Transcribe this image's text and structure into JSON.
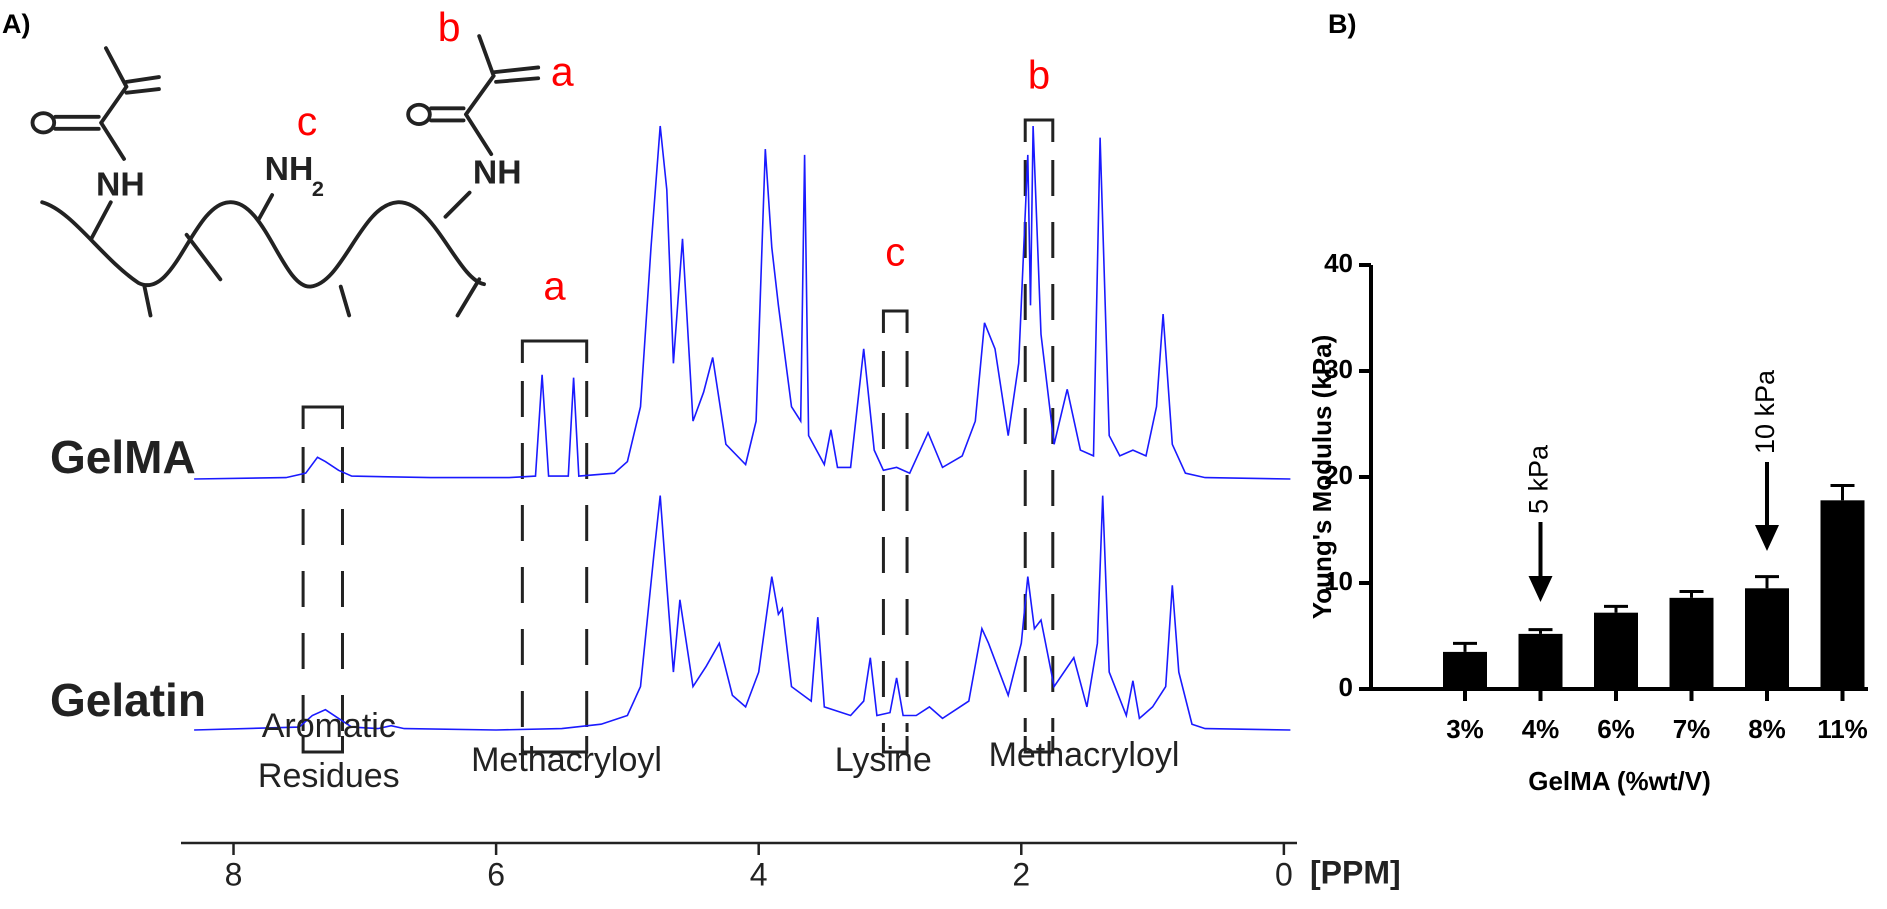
{
  "panel_labels": [
    "A)",
    "B)"
  ],
  "structure": {
    "labels": [
      "b",
      "a",
      "c",
      "NH",
      "NH",
      "NH",
      "2"
    ]
  },
  "chart_data": [
    {
      "type": "line",
      "xlabel": "[PPM]",
      "xlim": [
        8.4,
        -0.1
      ],
      "xticks": [
        8,
        6,
        4,
        2,
        0
      ],
      "ylim": [
        0,
        122
      ],
      "series": [
        {
          "name": "GelMA",
          "color": "#1a1aff",
          "x": [
            8.3,
            7.6,
            7.45,
            7.36,
            7.3,
            7.2,
            7.1,
            6.5,
            5.9,
            5.7,
            5.65,
            5.6,
            5.45,
            5.41,
            5.37,
            5.1,
            5.0,
            4.9,
            4.82,
            4.75,
            4.7,
            4.65,
            4.58,
            4.5,
            4.42,
            4.35,
            4.25,
            4.1,
            4.02,
            3.95,
            3.9,
            3.85,
            3.75,
            3.68,
            3.65,
            3.62,
            3.5,
            3.45,
            3.4,
            3.3,
            3.2,
            3.12,
            3.05,
            2.95,
            2.85,
            2.71,
            2.6,
            2.45,
            2.35,
            2.28,
            2.2,
            2.1,
            2.02,
            1.95,
            1.93,
            1.91,
            1.85,
            1.75,
            1.65,
            1.55,
            1.45,
            1.4,
            1.33,
            1.25,
            1.15,
            1.05,
            0.97,
            0.92,
            0.85,
            0.75,
            0.6,
            -0.05
          ],
          "values": [
            0,
            0.5,
            2,
            7.5,
            6,
            3,
            1,
            0.5,
            0.5,
            1,
            36,
            1,
            1,
            35,
            1,
            2,
            6,
            25,
            80,
            122,
            100,
            40,
            83,
            20,
            30,
            42,
            12,
            5,
            20,
            114,
            80,
            60,
            25,
            20,
            112,
            15,
            5,
            17,
            4,
            4,
            45,
            10,
            3,
            4,
            2,
            16,
            4,
            8,
            20,
            54,
            45,
            15,
            40,
            112,
            60,
            122,
            50,
            12,
            31,
            10,
            8,
            118,
            15,
            8,
            10,
            8,
            25,
            57,
            12,
            2,
            0.5,
            0
          ]
        },
        {
          "name": "Gelatin",
          "color": "#1a1aff",
          "x": [
            8.3,
            7.5,
            7.4,
            7.3,
            7.2,
            7.1,
            6.9,
            6.8,
            6.7,
            6.0,
            5.5,
            5.2,
            5.0,
            4.9,
            4.8,
            4.75,
            4.7,
            4.65,
            4.6,
            4.5,
            4.4,
            4.3,
            4.2,
            4.1,
            4.0,
            3.9,
            3.85,
            3.82,
            3.75,
            3.6,
            3.55,
            3.5,
            3.3,
            3.2,
            3.15,
            3.1,
            3.0,
            2.95,
            2.9,
            2.8,
            2.7,
            2.6,
            2.4,
            2.3,
            2.25,
            2.1,
            2.0,
            1.95,
            1.9,
            1.85,
            1.75,
            1.6,
            1.5,
            1.42,
            1.38,
            1.33,
            1.2,
            1.15,
            1.1,
            1.0,
            0.9,
            0.85,
            0.8,
            0.7,
            0.6,
            -0.05
          ],
          "values": [
            0,
            1,
            5,
            7,
            4,
            1,
            0.5,
            1.5,
            0.5,
            0,
            0.5,
            2,
            5,
            15,
            60,
            81,
            50,
            20,
            45,
            15,
            22,
            30,
            12,
            8,
            20,
            53,
            40,
            42,
            15,
            10,
            39,
            8,
            5,
            10,
            25,
            5,
            6,
            18,
            5,
            5,
            8,
            4,
            10,
            35,
            30,
            12,
            30,
            53,
            35,
            38,
            15,
            25,
            8,
            30,
            81,
            20,
            5,
            17,
            4,
            8,
            15,
            50,
            20,
            2,
            0.5,
            0
          ]
        }
      ],
      "regions": [
        {
          "label": "Aromatic Residues",
          "range": [
            7.47,
            7.17
          ]
        },
        {
          "label": "Methacryloyl",
          "letter": "a",
          "range": [
            5.8,
            5.31
          ]
        },
        {
          "label": "Lysine",
          "letter": "c",
          "range": [
            3.05,
            2.87
          ]
        },
        {
          "label": "Methacryloyl",
          "letter": "b",
          "range": [
            1.97,
            1.76
          ]
        }
      ]
    },
    {
      "type": "bar",
      "xlabel": "GelMA (%wt/V)",
      "ylabel": "Young's Modulus (kPa)",
      "categories": [
        "3%",
        "4%",
        "6%",
        "7%",
        "8%",
        "11%"
      ],
      "values": [
        3.5,
        5.2,
        7.2,
        8.6,
        9.5,
        17.8
      ],
      "errors": [
        0.8,
        0.4,
        0.6,
        0.6,
        1.1,
        1.4
      ],
      "color": "#000000",
      "ylim": [
        0,
        40
      ],
      "yticks": [
        0,
        10,
        20,
        30,
        40
      ],
      "annotations": [
        {
          "text": "5 kPa"
        },
        {
          "text": "10 kPa"
        }
      ]
    }
  ]
}
